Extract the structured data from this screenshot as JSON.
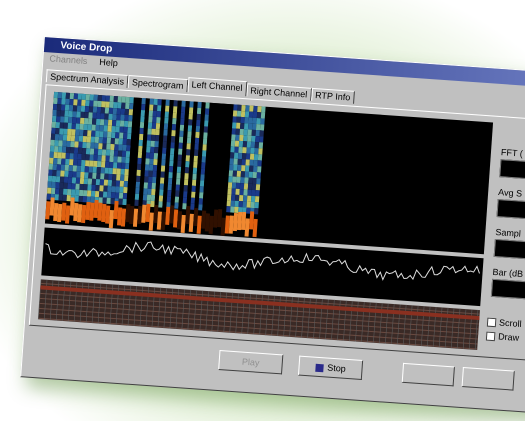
{
  "window": {
    "title": "Voice Drop"
  },
  "menu": [
    "Channels",
    "Help"
  ],
  "tabs": [
    "Spectrum Analysis",
    "Spectrogram",
    "Left Channel",
    "Right Channel",
    "RTP Info"
  ],
  "controls": [
    "FFT (",
    "Avg S",
    "Sampl",
    "Bar (dB"
  ],
  "checkboxes": [
    "Scroll",
    "Draw"
  ],
  "buttons": [
    "Play",
    "Stop"
  ]
}
